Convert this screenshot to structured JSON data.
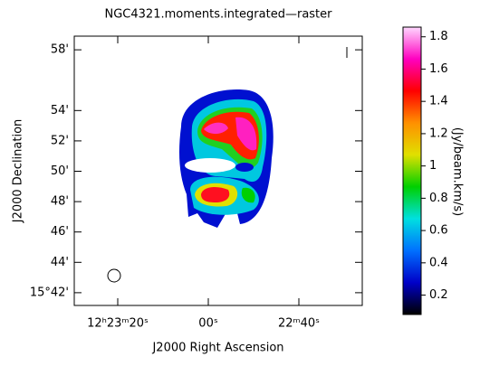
{
  "chart_data": {
    "type": "image",
    "title": "NGC4321.moments.integrated—raster",
    "x_label": "J2000 Right Ascension",
    "y_label": "J2000 Declination",
    "colorbar_label": "(Jy/beam.km/s)",
    "xlim": [
      29.6,
      -34
    ],
    "xticks": [
      {
        "value": 20,
        "label": "12ʰ23ᵐ20ˢ"
      },
      {
        "value": 0,
        "label": "00ˢ"
      },
      {
        "value": -20,
        "label": "22ᵐ40ˢ"
      }
    ],
    "ylim": [
      41.16,
      58.9
    ],
    "yticks": [
      {
        "value": 42,
        "label": "15°42'"
      },
      {
        "value": 44,
        "label": "44'"
      },
      {
        "value": 46,
        "label": "46'"
      },
      {
        "value": 48,
        "label": "48'"
      },
      {
        "value": 50,
        "label": "50'"
      },
      {
        "value": 52,
        "label": "52'"
      },
      {
        "value": 54,
        "label": "54'"
      },
      {
        "value": 58,
        "label": "58'"
      }
    ],
    "clim": [
      0.08,
      1.86
    ],
    "cticks": [
      0.2,
      0.4,
      0.6,
      0.8,
      1,
      1.2,
      1.4,
      1.6,
      1.8
    ],
    "colormap": [
      "#000000",
      "#0000c8",
      "#0070ff",
      "#00e0e0",
      "#00d000",
      "#e0e000",
      "#ff9000",
      "#ff0000",
      "#ff00c0",
      "#ffd8ff"
    ]
  }
}
